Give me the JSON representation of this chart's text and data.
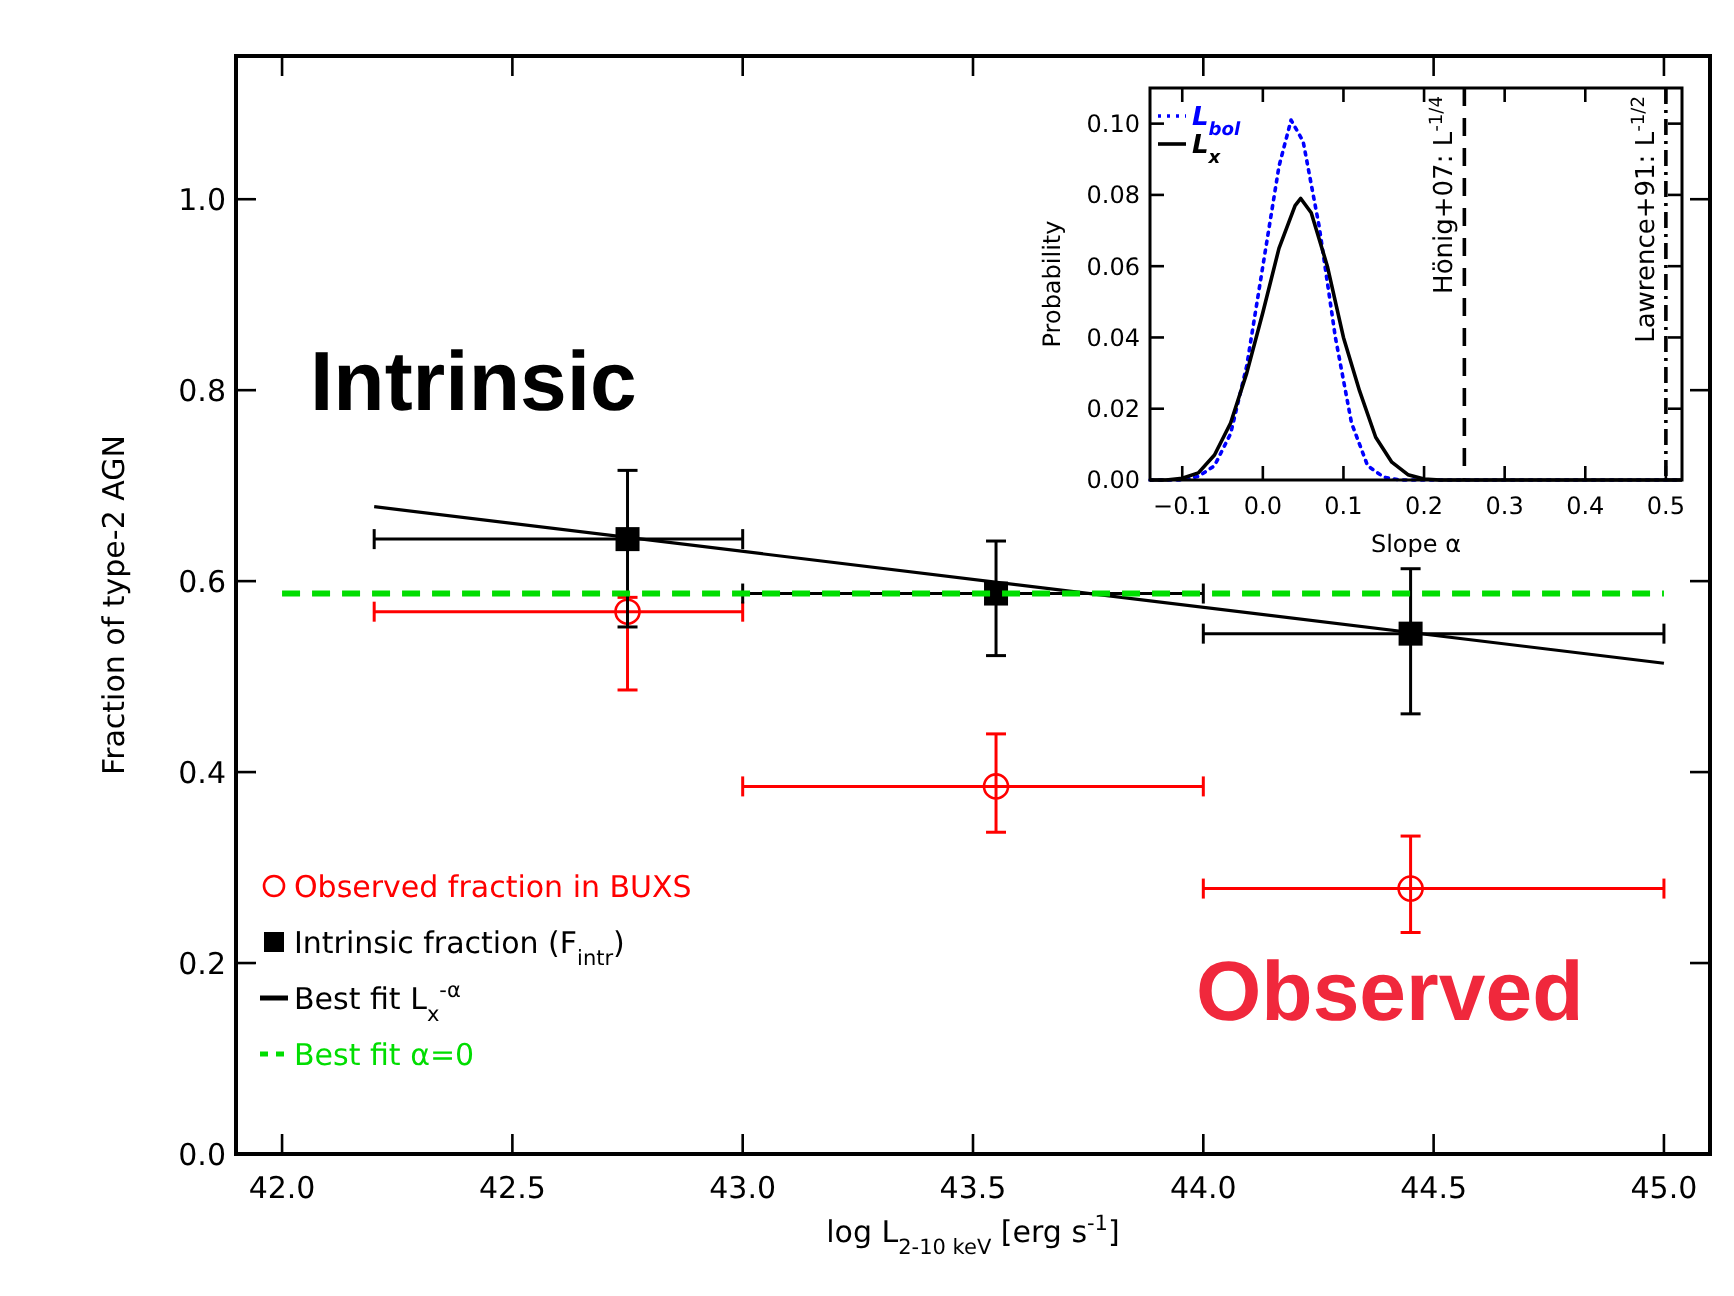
{
  "chart_data": [
    {
      "type": "scatter",
      "xlabel": "log L$_{2-10 keV}$ [erg s$^{-1}$]",
      "ylabel": "Fraction of type-2 AGN",
      "xlim": [
        41.9,
        45.1
      ],
      "ylim": [
        0,
        1.15
      ],
      "xticks": [
        {
          "value": 42,
          "label": "42.0"
        },
        42.5,
        {
          "value": 43,
          "label": "43.0"
        },
        43.5,
        {
          "value": 44,
          "label": "44.0"
        },
        44.5,
        {
          "value": 45,
          "label": "45.0"
        }
      ],
      "yticks": [
        {
          "value": 0,
          "label": "0.0"
        },
        0.2,
        0.4,
        0.6,
        0.8,
        {
          "value": 1,
          "label": "1.0"
        }
      ],
      "legend": "bottom left",
      "annotations": [
        "Intrinsic",
        "Observed"
      ],
      "series": [
        {
          "name": "Observed fraction in BUXS",
          "marker": "circle",
          "color": "#ff0000",
          "x": [
            42.75,
            43.55,
            44.45
          ],
          "values": [
            0.568,
            0.385,
            0.278
          ],
          "errors": [
            [
              0.486,
              0.583
            ],
            [
              0.337,
              0.44
            ],
            [
              0.232,
              0.333
            ]
          ],
          "xerrors": [
            [
              42.2,
              43.0
            ],
            [
              43.0,
              44.0
            ],
            [
              44.0,
              45.0
            ]
          ]
        },
        {
          "name": "Intrinsic fraction (F$_{intr}$)",
          "marker": "square",
          "color": "#000000",
          "x": [
            42.75,
            43.55,
            44.45
          ],
          "values": [
            0.644,
            0.587,
            0.545
          ],
          "errors": [
            [
              0.552,
              0.716
            ],
            [
              0.522,
              0.642
            ],
            [
              0.461,
              0.613
            ]
          ],
          "xerrors": [
            [
              42.2,
              43.0
            ],
            [
              43.0,
              44.0
            ],
            [
              44.0,
              45.0
            ]
          ]
        },
        {
          "name": "Best fit L$_{x}$$^{-α}$",
          "type": "line",
          "line_style": "solid",
          "color": "#000000",
          "x": [
            42.2,
            45.0
          ],
          "values": [
            0.678,
            0.514
          ]
        },
        {
          "name": "Best fit α=0",
          "type": "line",
          "line_style": "dashed",
          "color": "#00dd00",
          "x": [
            42.0,
            45.0
          ],
          "values": [
            0.587,
            0.587
          ]
        }
      ]
    },
    {
      "type": "line",
      "xlabel": "Slope α",
      "ylabel": "Probability",
      "xlim": [
        -0.14,
        0.52
      ],
      "ylim": [
        0,
        0.11
      ],
      "xticks": [
        {
          "value": -0.1,
          "label": "−0.1"
        },
        {
          "value": 0,
          "label": "0.0"
        },
        0.1,
        0.2,
        0.3,
        0.4,
        0.5
      ],
      "yticks": [
        {
          "value": 0,
          "label": "0.00"
        },
        0.02,
        0.04,
        0.06,
        0.08,
        {
          "value": 0.1,
          "label": "0.10"
        }
      ],
      "legend": "top left",
      "ref_lines": [
        {
          "axis": "x",
          "value": 0.25,
          "label": "Hönig+07: L$^{-1/4}$",
          "line_style": "dashed"
        },
        {
          "axis": "x",
          "value": 0.5,
          "label": "Lawrence+91: L$^{-1/2}$",
          "line_style": "dashdot"
        }
      ],
      "series": [
        {
          "name": "L$_{bol}$",
          "line_style": "dotted",
          "color": "#0000ff",
          "x": [
            -0.14,
            -0.1,
            -0.08,
            -0.06,
            -0.04,
            -0.02,
            0.0,
            0.02,
            0.035,
            0.05,
            0.07,
            0.09,
            0.11,
            0.13,
            0.15,
            0.17,
            0.52
          ],
          "values": [
            0,
            0,
            0.001,
            0.004,
            0.013,
            0.032,
            0.06,
            0.088,
            0.101,
            0.095,
            0.071,
            0.04,
            0.016,
            0.004,
            0.0008,
            0,
            0
          ]
        },
        {
          "name": "L$_{x}$",
          "line_style": "solid",
          "color": "#000000",
          "x": [
            -0.14,
            -0.12,
            -0.1,
            -0.08,
            -0.06,
            -0.04,
            -0.02,
            0.0,
            0.02,
            0.04,
            0.047,
            0.06,
            0.08,
            0.1,
            0.12,
            0.14,
            0.16,
            0.18,
            0.2,
            0.22,
            0.52
          ],
          "values": [
            0,
            0,
            0.0005,
            0.002,
            0.007,
            0.016,
            0.03,
            0.047,
            0.065,
            0.077,
            0.079,
            0.075,
            0.06,
            0.04,
            0.025,
            0.012,
            0.005,
            0.0015,
            0.0003,
            0,
            0
          ]
        }
      ]
    }
  ]
}
